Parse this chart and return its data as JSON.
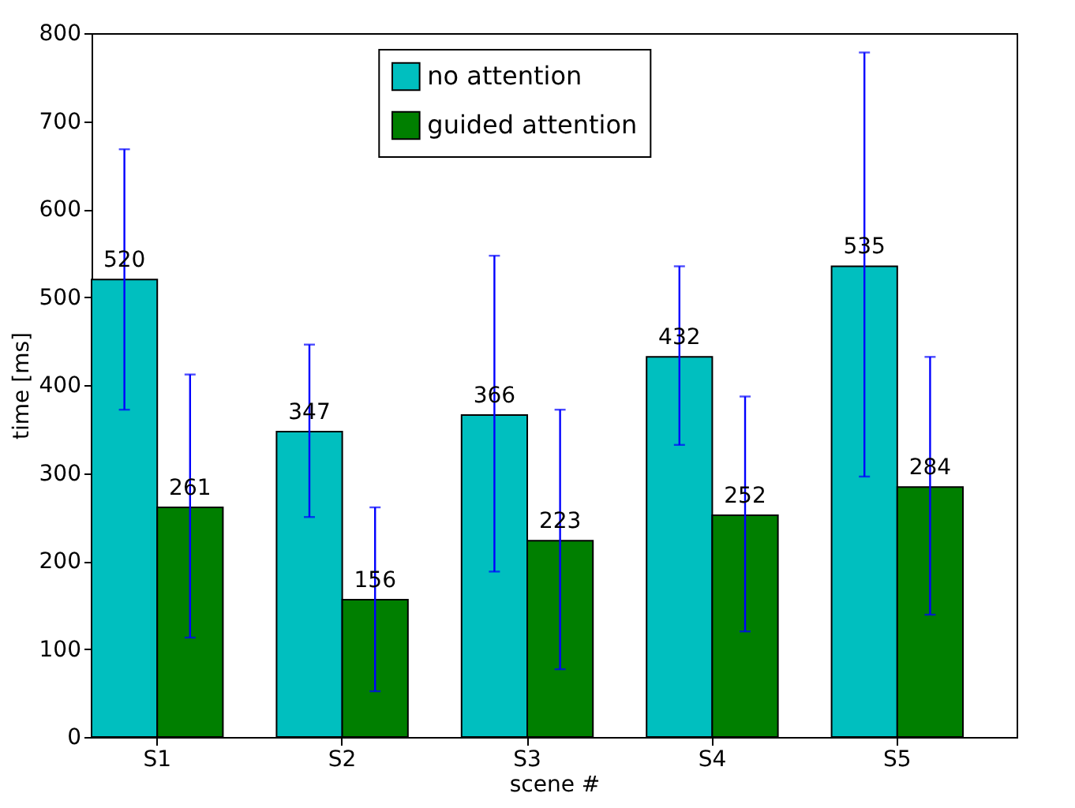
{
  "chart_data": {
    "type": "bar",
    "xlabel": "scene #",
    "ylabel": "time [ms]",
    "categories": [
      "S1",
      "S2",
      "S3",
      "S4",
      "S5"
    ],
    "series": [
      {
        "name": "no attention",
        "color": "#00bfbf",
        "values": [
          520,
          347,
          366,
          432,
          535
        ],
        "errors": [
          [
            372,
            668
          ],
          [
            250,
            446
          ],
          [
            188,
            547
          ],
          [
            332,
            535
          ],
          [
            296,
            778
          ]
        ]
      },
      {
        "name": "guided attention",
        "color": "#007f00",
        "values": [
          261,
          156,
          223,
          252,
          284
        ],
        "errors": [
          [
            113,
            412
          ],
          [
            52,
            261
          ],
          [
            77,
            372
          ],
          [
            120,
            387
          ],
          [
            139,
            432
          ]
        ]
      }
    ],
    "ylim": [
      0,
      800
    ],
    "yticks": [
      0,
      100,
      200,
      300,
      400,
      500,
      600,
      700,
      800
    ],
    "data_labels": true,
    "legend": "top",
    "grid": false
  }
}
